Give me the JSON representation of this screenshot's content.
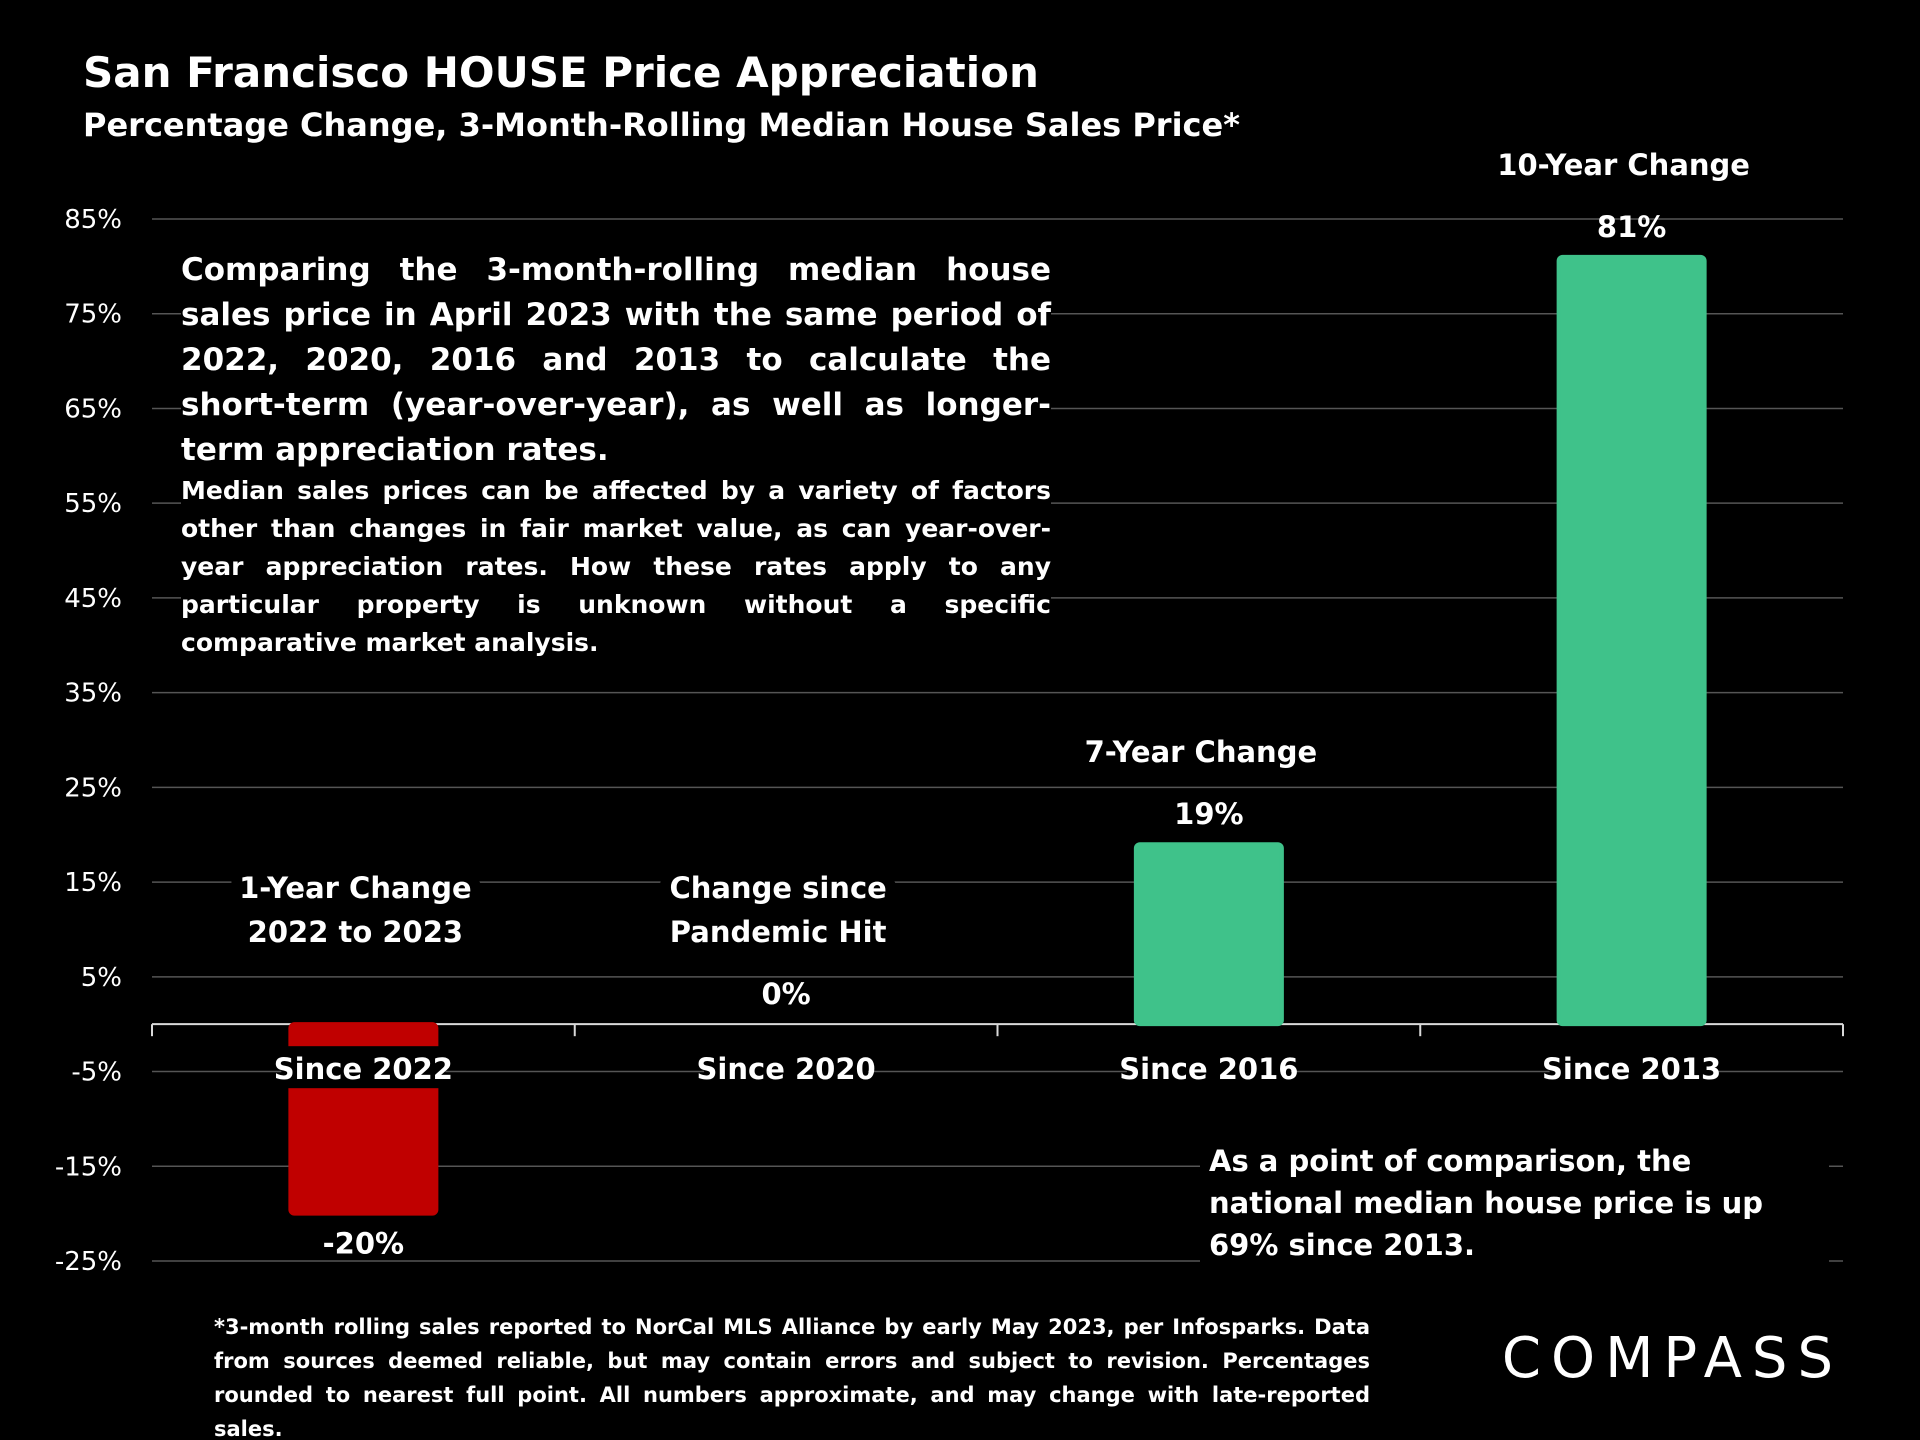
{
  "chart_data": {
    "type": "bar",
    "title": "San Francisco HOUSE Price Appreciation",
    "subtitle": "Percentage Change, 3-Month-Rolling Median House Sales Price*",
    "categories": [
      "Since 2022",
      "Since 2020",
      "Since 2016",
      "Since 2013"
    ],
    "values": [
      -20,
      0,
      19,
      81
    ],
    "value_labels": [
      "-20%",
      "0%",
      "19%",
      "81%"
    ],
    "colors": [
      "#c00000",
      "#3fc28a",
      "#3fc28a",
      "#3fc28a"
    ],
    "group_labels": [
      [
        "1-Year Change",
        "2022 to 2023"
      ],
      [
        "Change since",
        "Pandemic Hit"
      ],
      [
        "7-Year Change"
      ],
      [
        "10-Year Change"
      ]
    ],
    "ylim": [
      -25,
      85
    ],
    "yticks": [
      {
        "value": -25,
        "label": "-25%"
      },
      {
        "value": -15,
        "label": "-15%"
      },
      {
        "value": -5,
        "label": "-5%"
      },
      {
        "value": 5,
        "label": "5%"
      },
      {
        "value": 15,
        "label": "15%"
      },
      {
        "value": 25,
        "label": "25%"
      },
      {
        "value": 35,
        "label": "35%"
      },
      {
        "value": 45,
        "label": "45%"
      },
      {
        "value": 55,
        "label": "55%"
      },
      {
        "value": 65,
        "label": "65%"
      },
      {
        "value": 75,
        "label": "75%"
      },
      {
        "value": 85,
        "label": "85%"
      }
    ],
    "grid": true,
    "annotations": [
      "Comparing the 3-month-rolling median house sales price in April 2023 with the same period of 2022, 2020, 2016 and 2013 to calculate the short-term (year-over-year), as well as longer-term appreciation rates.",
      "Median sales prices can be affected by a variety of factors other than changes in fair market value, as can year-over-year appreciation rates. How these rates apply to any particular property is unknown without a specific comparative market analysis.",
      "As a point of comparison, the national median house price is up 69% since 2013."
    ],
    "footnote": "*3-month rolling sales reported to NorCal MLS Alliance by early May 2023, per Infosparks. Data from sources deemed reliable, but may contain errors and subject to revision. Percentages rounded to nearest full point. All numbers approximate, and may change with late-reported sales.",
    "logo": "COMPASS"
  }
}
